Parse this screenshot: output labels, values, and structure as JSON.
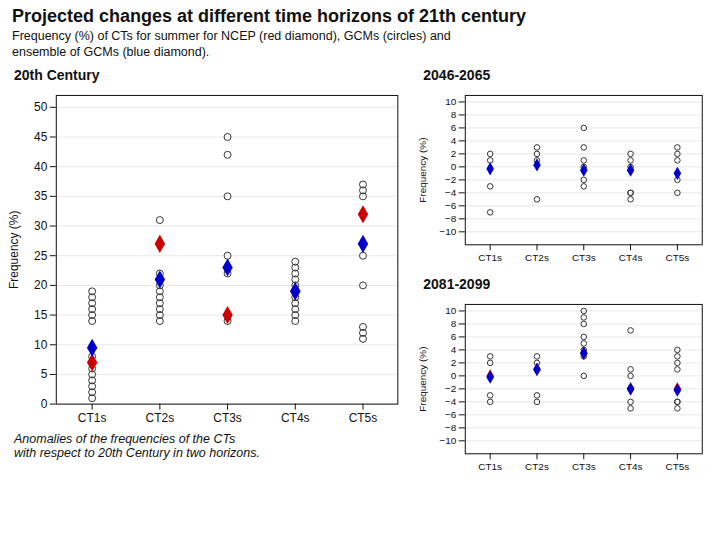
{
  "title": "Projected changes at different time horizons of 21th century",
  "subtitle": [
    "Frequency (%) of CTs for summer for NCEP (red diamond), GCMs (circles) and",
    "ensemble of GCMs (blue diamond)."
  ],
  "caption": [
    "Anomalies of the frequencies of the CTs",
    "with respect to 20th Century in two horizons."
  ],
  "chart_data": [
    {
      "type": "scatter",
      "title": "20th Century",
      "categories": [
        "CT1s",
        "CT2s",
        "CT3s",
        "CT4s",
        "CT5s"
      ],
      "ylabel": "Frequency (%)",
      "ylim": [
        0,
        52
      ],
      "yticks": [
        0,
        5,
        10,
        15,
        20,
        25,
        30,
        35,
        40,
        45,
        50
      ],
      "grid": true,
      "series": [
        {
          "color": "#333333",
          "marker": "circle",
          "values": [
            [
              1,
              2,
              3,
              4,
              5,
              6,
              8,
              14,
              15,
              16,
              17,
              18,
              19
            ],
            [
              14,
              15,
              16,
              17,
              18,
              19,
              20,
              21,
              22,
              31
            ],
            [
              14,
              22,
              23,
              25,
              35,
              42,
              45
            ],
            [
              14,
              15,
              16,
              17,
              18,
              19,
              20,
              21,
              22,
              23,
              24
            ],
            [
              11,
              12,
              13,
              20,
              25,
              27,
              35,
              36,
              37
            ]
          ]
        },
        {
          "color": "#cc0000",
          "marker": "diamond",
          "values": [
            7,
            27,
            15,
            19,
            32
          ]
        },
        {
          "color": "#0000cc",
          "marker": "diamond",
          "values": [
            9.5,
            21,
            23,
            19,
            27
          ]
        }
      ]
    },
    {
      "type": "scatter",
      "title": "2046-2065",
      "categories": [
        "CT1s",
        "CT2s",
        "CT3s",
        "CT4s",
        "CT5s"
      ],
      "ylabel": "Frequency (%)",
      "ylim": [
        -12,
        11
      ],
      "yticks": [
        -10,
        -8,
        -6,
        -4,
        -2,
        0,
        2,
        4,
        6,
        8,
        10
      ],
      "grid": true,
      "series": [
        {
          "color": "#333333",
          "marker": "circle",
          "values": [
            [
              -7,
              -3,
              1,
              2
            ],
            [
              -5,
              1,
              2,
              3
            ],
            [
              -3,
              -2,
              0,
              1,
              3,
              6
            ],
            [
              -5,
              -4,
              -4,
              0,
              1,
              2
            ],
            [
              -4,
              -2,
              1,
              2,
              3
            ]
          ]
        },
        {
          "color": "#0000cc",
          "marker": "diamond",
          "values": [
            -0.3,
            0.3,
            -0.5,
            -0.5,
            -1
          ]
        }
      ]
    },
    {
      "type": "scatter",
      "title": "2081-2099",
      "categories": [
        "CT1s",
        "CT2s",
        "CT3s",
        "CT4s",
        "CT5s"
      ],
      "ylabel": "Frequency (%)",
      "ylim": [
        -12,
        11
      ],
      "yticks": [
        -10,
        -8,
        -6,
        -4,
        -2,
        0,
        2,
        4,
        6,
        8,
        10
      ],
      "grid": true,
      "series": [
        {
          "color": "#333333",
          "marker": "circle",
          "values": [
            [
              -4,
              -3,
              2,
              3
            ],
            [
              -4,
              -3,
              2,
              3
            ],
            [
              0,
              3,
              4,
              5,
              6,
              8,
              9,
              10
            ],
            [
              -5,
              -4,
              -2,
              -2,
              0,
              1,
              7
            ],
            [
              -5,
              -4,
              -4,
              1,
              2,
              3,
              4
            ]
          ]
        },
        {
          "color": "#cc0000",
          "marker": "diamond",
          "values": [
            0,
            1,
            3.5,
            -2,
            -2
          ]
        },
        {
          "color": "#0000cc",
          "marker": "diamond",
          "values": [
            -0.2,
            1,
            3.5,
            -2,
            -2.2
          ]
        }
      ]
    }
  ]
}
